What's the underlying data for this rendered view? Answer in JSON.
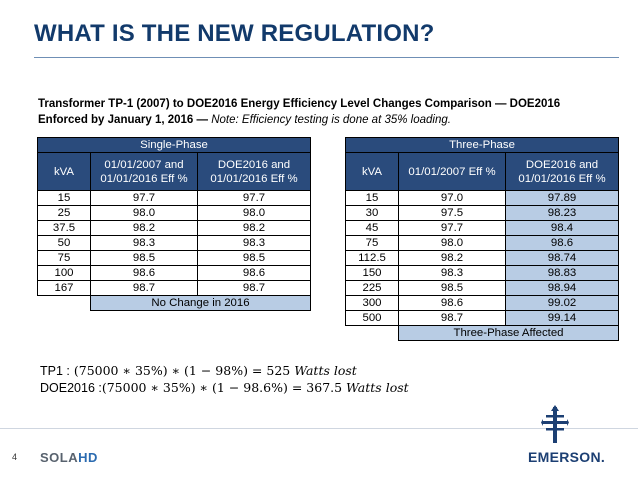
{
  "title": "WHAT IS THE NEW REGULATION?",
  "subtitle": {
    "line1": "Transformer TP-1 (2007) to DOE2016 Energy Efficiency Level Changes Comparison — DOE2016",
    "line2_bold": "Enforced by January 1, 2016 —",
    "line2_italic": "Note: Efficiency testing is done at 35% loading."
  },
  "single_phase": {
    "caption": "Single-Phase",
    "headers": [
      "kVA",
      "01/01/2007 and 01/01/2016 Eff %",
      "DOE2016 and 01/01/2016 Eff %"
    ],
    "rows": [
      [
        "15",
        "97.7",
        "97.7"
      ],
      [
        "25",
        "98.0",
        "98.0"
      ],
      [
        "37.5",
        "98.2",
        "98.2"
      ],
      [
        "50",
        "98.3",
        "98.3"
      ],
      [
        "75",
        "98.5",
        "98.5"
      ],
      [
        "100",
        "98.6",
        "98.6"
      ],
      [
        "167",
        "98.7",
        "98.7"
      ]
    ],
    "footer": "No Change in 2016"
  },
  "three_phase": {
    "caption": "Three-Phase",
    "headers": [
      "kVA",
      "01/01/2007 Eff %",
      "DOE2016 and 01/01/2016 Eff %"
    ],
    "rows": [
      [
        "15",
        "97.0",
        "97.89"
      ],
      [
        "30",
        "97.5",
        "98.23"
      ],
      [
        "45",
        "97.7",
        "98.4"
      ],
      [
        "75",
        "98.0",
        "98.6"
      ],
      [
        "112.5",
        "98.2",
        "98.74"
      ],
      [
        "150",
        "98.3",
        "98.83"
      ],
      [
        "225",
        "98.5",
        "98.94"
      ],
      [
        "300",
        "98.6",
        "99.02"
      ],
      [
        "500",
        "98.7",
        "99.14"
      ]
    ],
    "footer": "Three-Phase Affected"
  },
  "formulas": [
    {
      "label": "TP1 :",
      "expr": "(75000 ∗ 35%) ∗ (1 − 98%) =  525 ",
      "unit": "Watts lost"
    },
    {
      "label": "DOE2016 :",
      "expr": "(75000 ∗ 35%) ∗ (1 − 98.6%) = 367.5 ",
      "unit": "Watts lost"
    }
  ],
  "footer": {
    "page_number": "4",
    "logo_left_a": "SOLA",
    "logo_left_b": "HD",
    "logo_right": "EMERSON."
  },
  "colors": {
    "title": "#123a6b",
    "header_fill": "#2a4b7c",
    "highlight_fill": "#b8cce4"
  }
}
